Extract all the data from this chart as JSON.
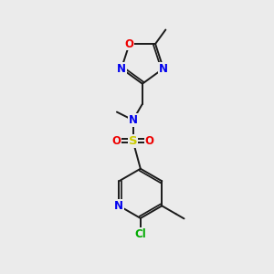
{
  "bg_color": "#ebebeb",
  "bond_color": "#1a1a1a",
  "atom_colors": {
    "N": "#0000ee",
    "O": "#ee0000",
    "S": "#cccc00",
    "Cl": "#00aa00",
    "C": "#1a1a1a"
  },
  "font_size": 8.5,
  "line_width": 1.4
}
